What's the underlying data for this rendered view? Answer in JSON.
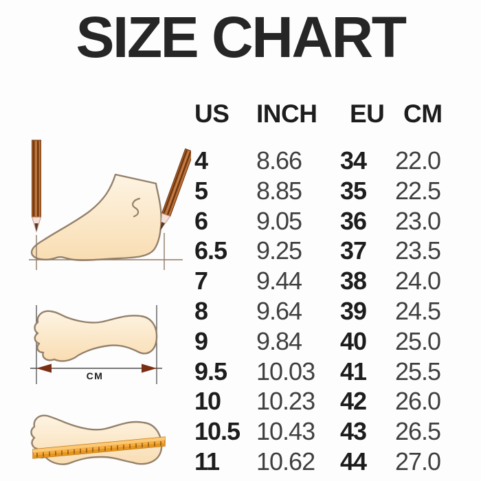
{
  "title": "SIZE CHART",
  "table": {
    "headers": [
      "US",
      "INCH",
      "EU",
      "CM"
    ],
    "rows": [
      {
        "us": "4",
        "inch": "8.66",
        "eu": "34",
        "cm": "22.0"
      },
      {
        "us": "5",
        "inch": "8.85",
        "eu": "35",
        "cm": "22.5"
      },
      {
        "us": "6",
        "inch": "9.05",
        "eu": "36",
        "cm": "23.0"
      },
      {
        "us": "6.5",
        "inch": "9.25",
        "eu": "37",
        "cm": "23.5"
      },
      {
        "us": "7",
        "inch": "9.44",
        "eu": "38",
        "cm": "24.0"
      },
      {
        "us": "8",
        "inch": "9.64",
        "eu": "39",
        "cm": "24.5"
      },
      {
        "us": "9",
        "inch": "9.84",
        "eu": "40",
        "cm": "25.0"
      },
      {
        "us": "9.5",
        "inch": "10.03",
        "eu": "41",
        "cm": "25.5"
      },
      {
        "us": "10",
        "inch": "10.23",
        "eu": "42",
        "cm": "26.0"
      },
      {
        "us": "10.5",
        "inch": "10.43",
        "eu": "43",
        "cm": "26.5"
      },
      {
        "us": "11",
        "inch": "10.62",
        "eu": "44",
        "cm": "27.0"
      }
    ]
  },
  "illustrations": {
    "foot_side_measure": "foot side view measured between two pencils",
    "footprint_cm": {
      "arrow_label": "CM"
    },
    "footprint_ruler": "footprint with ruler laid across"
  },
  "colors": {
    "title_text": "#262626",
    "bold_cell_text": "#1d1d1d",
    "light_cell_text": "#3f3f3f",
    "foot_fill_light": "#fdf4e3",
    "foot_fill_dark": "#f9ddb2",
    "foot_outline": "#94806a",
    "pencil_body": "#a8602c",
    "pencil_stripe_dark": "#5e2d0c",
    "pencil_tip_wood": "#f6e0d8",
    "ruler_orange": "#f7ac42",
    "ruler_edge": "#e5961f",
    "arrowhead_maroon": "#7b2e12",
    "background": "#fdfdfd"
  },
  "chart_data": {
    "type": "table",
    "title": "SIZE CHART",
    "columns": [
      "US",
      "INCH",
      "EU",
      "CM"
    ],
    "rows": [
      [
        "4",
        "8.66",
        "34",
        "22.0"
      ],
      [
        "5",
        "8.85",
        "35",
        "22.5"
      ],
      [
        "6",
        "9.05",
        "36",
        "23.0"
      ],
      [
        "6.5",
        "9.25",
        "37",
        "23.5"
      ],
      [
        "7",
        "9.44",
        "38",
        "24.0"
      ],
      [
        "8",
        "9.64",
        "39",
        "24.5"
      ],
      [
        "9",
        "9.84",
        "40",
        "25.0"
      ],
      [
        "9.5",
        "10.03",
        "41",
        "25.5"
      ],
      [
        "10",
        "10.23",
        "42",
        "26.0"
      ],
      [
        "10.5",
        "10.43",
        "43",
        "26.5"
      ],
      [
        "11",
        "10.62",
        "44",
        "27.0"
      ]
    ]
  }
}
